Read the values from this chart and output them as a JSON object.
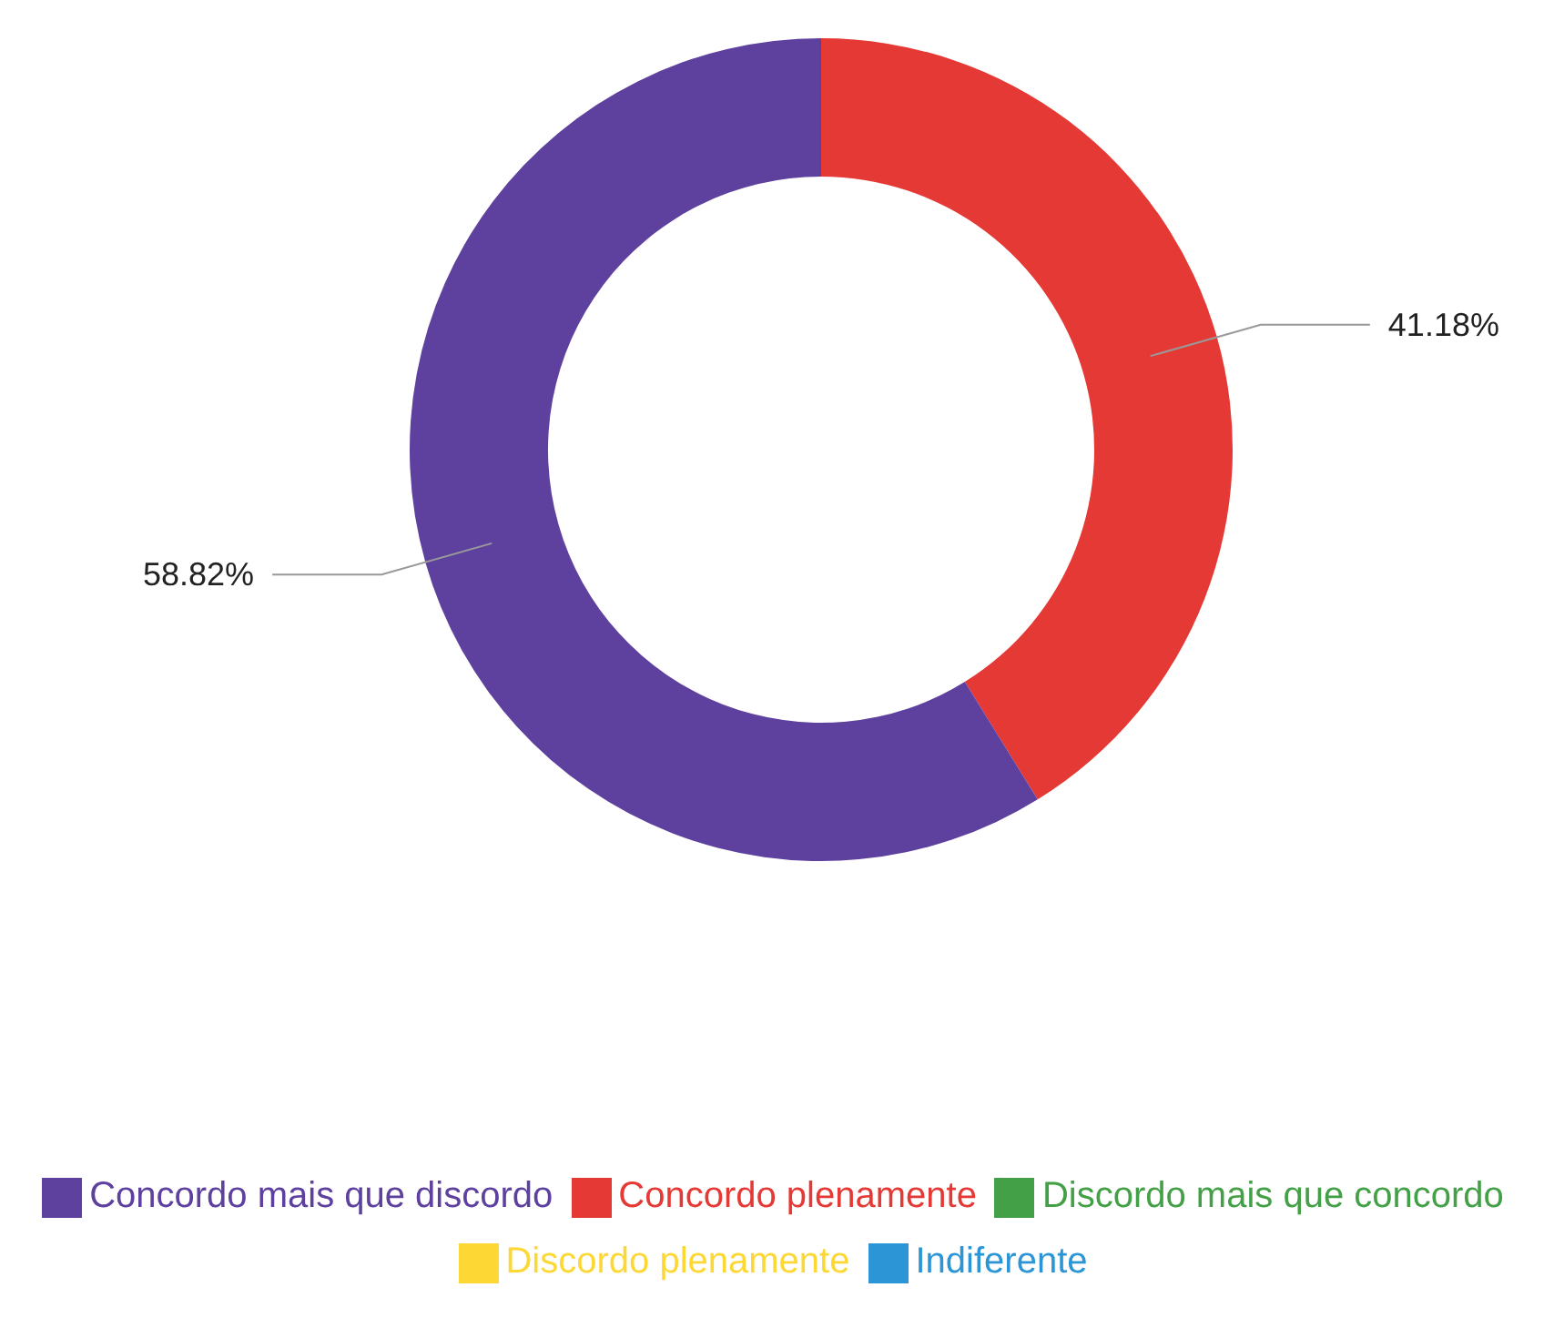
{
  "chart_data": {
    "type": "donut",
    "categories": [
      "Concordo plenamente",
      "Concordo mais que discordo",
      "Indiferente",
      "Discordo mais que concordo",
      "Discordo plenamente"
    ],
    "values": [
      41.18,
      58.82,
      0,
      0,
      0
    ],
    "colors": [
      "#e53935",
      "#5e409e",
      "#2b95d6",
      "#43a047",
      "#fdd835"
    ],
    "value_labels": [
      "41.18%",
      "58.82%",
      null,
      null,
      null
    ],
    "legend": "bottom"
  }
}
